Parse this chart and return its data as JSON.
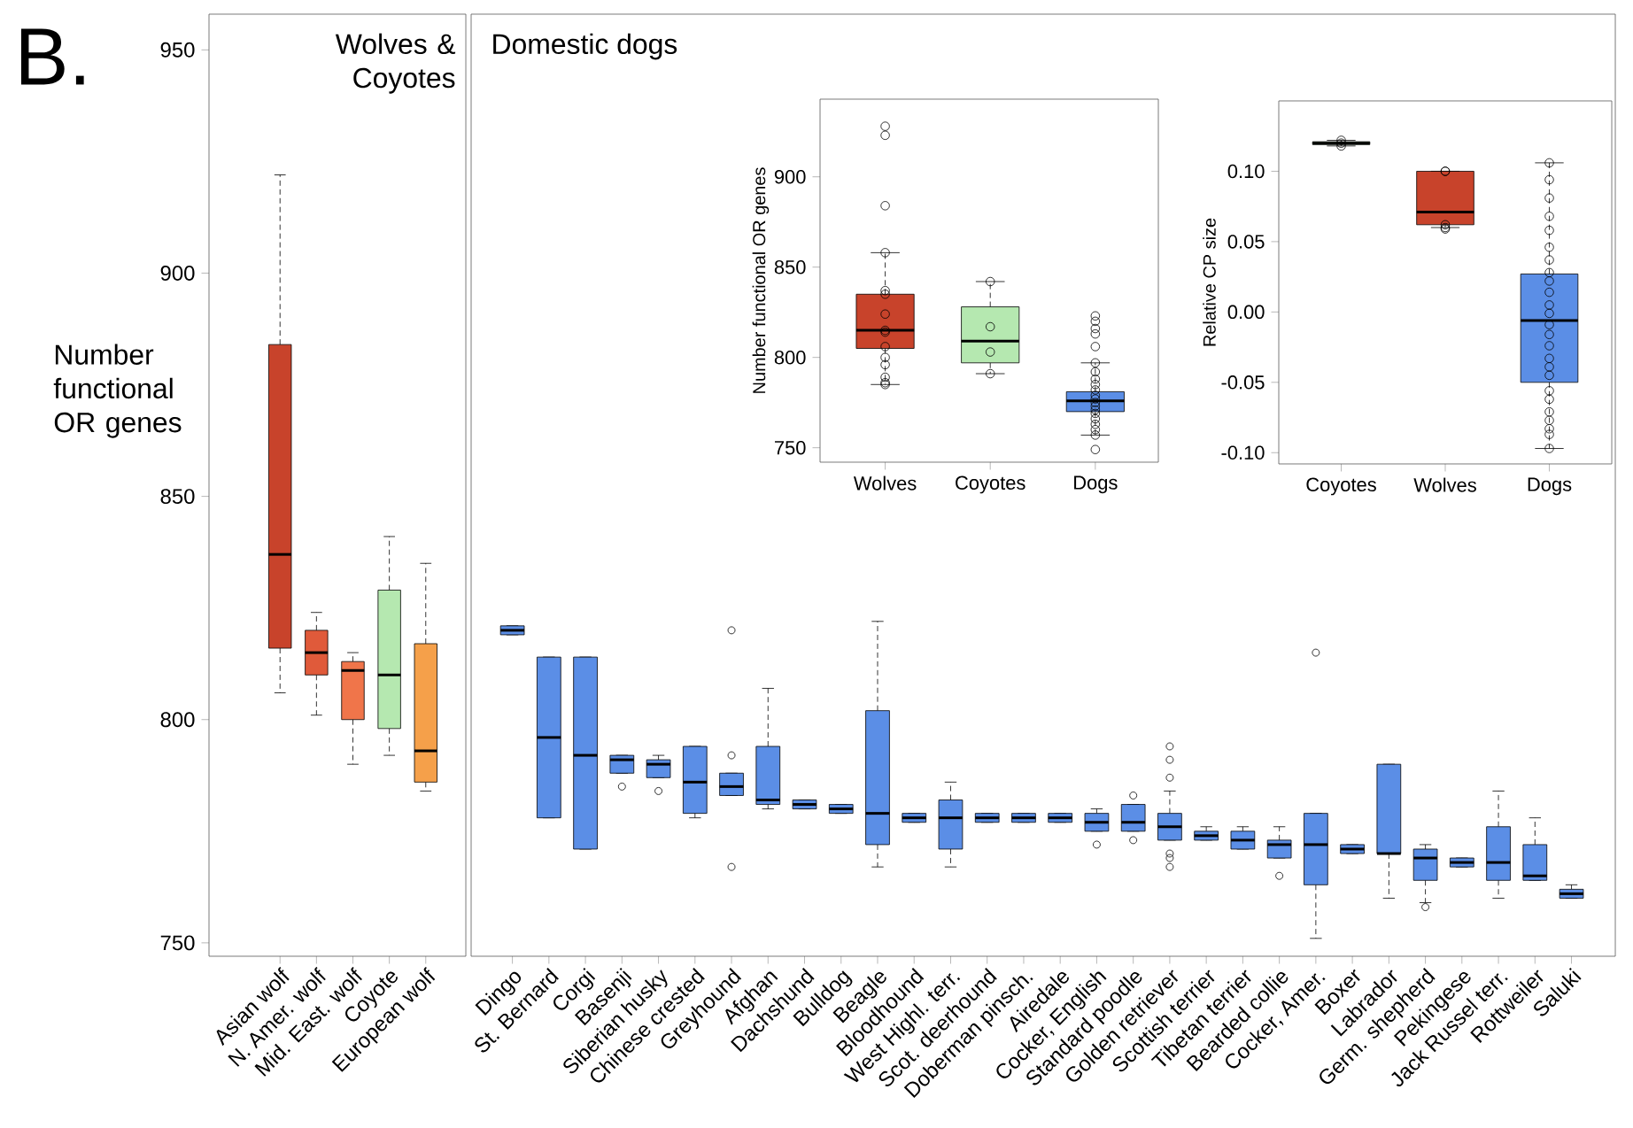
{
  "chart_data": [
    {
      "type": "box",
      "title": "Wolves & Coyotes",
      "ylabel": "Number functional OR genes",
      "annotations": [
        "B."
      ],
      "categories": [
        "Asian wolf",
        "N. Amer. wolf",
        "Mid. East. wolf",
        "Coyote",
        "European wolf"
      ],
      "colors": [
        "#c8432b",
        "#e05a3a",
        "#f0754a",
        "#b5e8b0",
        "#f5a04a"
      ],
      "boxes": [
        {
          "low": 806,
          "q1": 816,
          "median": 837,
          "q3": 884,
          "high": 922
        },
        {
          "low": 801,
          "q1": 810,
          "median": 815,
          "q3": 820,
          "high": 824
        },
        {
          "low": 790,
          "q1": 800,
          "median": 811,
          "q3": 813,
          "high": 815
        },
        {
          "low": 792,
          "q1": 798,
          "median": 810,
          "q3": 829,
          "high": 841
        },
        {
          "low": 784,
          "q1": 786,
          "median": 793,
          "q3": 817,
          "high": 835
        }
      ],
      "ylim": [
        747,
        958
      ],
      "yticks": [
        750,
        800,
        850,
        900,
        950
      ]
    },
    {
      "type": "box",
      "title": "Domestic dogs",
      "tick_labels": "x",
      "categories": [
        "Dingo",
        "St. Bernard",
        "Corgi",
        "Basenji",
        "Siberian husky",
        "Chinese crested",
        "Greyhound",
        "Afghan",
        "Dachshund",
        "Bulldog",
        "Beagle",
        "Bloodhound",
        "West Highl. terr.",
        "Scot. deerhound",
        "Doberman pinsch.",
        "Airedale",
        "Cocker, English",
        "Standard poodle",
        "Golden retriever",
        "Scottish terrier",
        "Tibetan terrier",
        "Bearded collie",
        "Cocker, Amer.",
        "Boxer",
        "Labrador",
        "Germ. shepherd",
        "Pekingese",
        "Jack Russel terr.",
        "Rottweiler",
        "Saluki"
      ],
      "color": "#5b8ee6",
      "boxes": [
        {
          "low": 819,
          "q1": 819,
          "median": 820,
          "q3": 821,
          "high": 821
        },
        {
          "low": 778,
          "q1": 778,
          "median": 796,
          "q3": 814,
          "high": 814
        },
        {
          "low": 771,
          "q1": 771,
          "median": 792,
          "q3": 814,
          "high": 814
        },
        {
          "low": 788,
          "q1": 788,
          "median": 791,
          "q3": 792,
          "high": 792,
          "outliers": [
            785
          ]
        },
        {
          "low": 787,
          "q1": 787,
          "median": 790,
          "q3": 791,
          "high": 792,
          "outliers": [
            784
          ]
        },
        {
          "low": 778,
          "q1": 779,
          "median": 786,
          "q3": 794,
          "high": 794
        },
        {
          "low": 783,
          "q1": 783,
          "median": 785,
          "q3": 788,
          "high": 788,
          "outliers": [
            820,
            792,
            767
          ]
        },
        {
          "low": 780,
          "q1": 781,
          "median": 782,
          "q3": 794,
          "high": 807
        },
        {
          "low": 780,
          "q1": 780,
          "median": 781,
          "q3": 782,
          "high": 782
        },
        {
          "low": 779,
          "q1": 779,
          "median": 780,
          "q3": 781,
          "high": 781
        },
        {
          "low": 767,
          "q1": 772,
          "median": 779,
          "q3": 802,
          "high": 822
        },
        {
          "low": 777,
          "q1": 777,
          "median": 778,
          "q3": 779,
          "high": 779
        },
        {
          "low": 767,
          "q1": 771,
          "median": 778,
          "q3": 782,
          "high": 786
        },
        {
          "low": 777,
          "q1": 777,
          "median": 778,
          "q3": 779,
          "high": 779
        },
        {
          "low": 777,
          "q1": 777,
          "median": 778,
          "q3": 779,
          "high": 779
        },
        {
          "low": 777,
          "q1": 777,
          "median": 778,
          "q3": 779,
          "high": 779
        },
        {
          "low": 775,
          "q1": 775,
          "median": 777,
          "q3": 779,
          "high": 780,
          "outliers": [
            772
          ]
        },
        {
          "low": 775,
          "q1": 775,
          "median": 777,
          "q3": 781,
          "high": 781,
          "outliers": [
            783,
            773
          ]
        },
        {
          "low": 773,
          "q1": 773,
          "median": 776,
          "q3": 779,
          "high": 784,
          "outliers": [
            794,
            791,
            787,
            770,
            769,
            767
          ]
        },
        {
          "low": 773,
          "q1": 773,
          "median": 774,
          "q3": 775,
          "high": 776
        },
        {
          "low": 771,
          "q1": 771,
          "median": 773,
          "q3": 775,
          "high": 776
        },
        {
          "low": 769,
          "q1": 769,
          "median": 772,
          "q3": 773,
          "high": 776,
          "outliers": [
            765
          ]
        },
        {
          "low": 751,
          "q1": 763,
          "median": 772,
          "q3": 779,
          "high": 779,
          "outliers": [
            815
          ]
        },
        {
          "low": 770,
          "q1": 770,
          "median": 771,
          "q3": 772,
          "high": 772
        },
        {
          "low": 760,
          "q1": 770,
          "median": 770,
          "q3": 790,
          "high": 790
        },
        {
          "low": 759,
          "q1": 764,
          "median": 769,
          "q3": 771,
          "high": 772,
          "outliers": [
            758
          ]
        },
        {
          "low": 767,
          "q1": 767,
          "median": 768,
          "q3": 769,
          "high": 769
        },
        {
          "low": 760,
          "q1": 764,
          "median": 768,
          "q3": 776,
          "high": 784
        },
        {
          "low": 764,
          "q1": 764,
          "median": 765,
          "q3": 772,
          "high": 778
        },
        {
          "low": 760,
          "q1": 760,
          "median": 761,
          "q3": 762,
          "high": 763
        }
      ],
      "ylim": [
        747,
        958
      ]
    },
    {
      "type": "box",
      "ylabel": "Number functional OR genes",
      "categories": [
        "Wolves",
        "Coyotes",
        "Dogs"
      ],
      "colors": [
        "#c8432b",
        "#b5e8b0",
        "#5b8ee6"
      ],
      "boxes": [
        {
          "low": 785,
          "q1": 805,
          "median": 815,
          "q3": 835,
          "high": 858
        },
        {
          "low": 791,
          "q1": 797,
          "median": 809,
          "q3": 828,
          "high": 842
        },
        {
          "low": 757,
          "q1": 770,
          "median": 776,
          "q3": 781,
          "high": 797
        }
      ],
      "series": [
        {
          "type": "scatter",
          "marker": "circle",
          "color": "#000000",
          "x": [
            "Wolves",
            "Wolves",
            "Wolves",
            "Wolves",
            "Wolves",
            "Wolves",
            "Wolves",
            "Wolves",
            "Wolves",
            "Wolves",
            "Wolves",
            "Wolves",
            "Wolves",
            "Wolves",
            "Wolves"
          ],
          "values": [
            928,
            923,
            884,
            858,
            837,
            835,
            824,
            815,
            814,
            806,
            800,
            796,
            789,
            786,
            785
          ]
        },
        {
          "type": "scatter",
          "marker": "circle",
          "color": "#000000",
          "x": [
            "Coyotes",
            "Coyotes",
            "Coyotes",
            "Coyotes"
          ],
          "values": [
            842,
            817,
            803,
            791
          ]
        },
        {
          "type": "scatter",
          "marker": "circle",
          "color": "#000000",
          "x": [
            "Dogs",
            "Dogs",
            "Dogs",
            "Dogs",
            "Dogs",
            "Dogs",
            "Dogs",
            "Dogs",
            "Dogs",
            "Dogs",
            "Dogs",
            "Dogs",
            "Dogs",
            "Dogs",
            "Dogs",
            "Dogs",
            "Dogs",
            "Dogs",
            "Dogs",
            "Dogs",
            "Dogs"
          ],
          "values": [
            823,
            820,
            816,
            813,
            806,
            797,
            792,
            788,
            785,
            782,
            779,
            777,
            775,
            773,
            771,
            769,
            766,
            763,
            760,
            757,
            749
          ]
        }
      ],
      "ylim": [
        742,
        943
      ],
      "yticks": [
        750,
        800,
        850,
        900
      ]
    },
    {
      "type": "box",
      "ylabel": "Relative CP size",
      "categories": [
        "Coyotes",
        "Wolves",
        "Dogs"
      ],
      "colors": [
        "#b5e8b0",
        "#c8432b",
        "#5b8ee6"
      ],
      "boxes": [
        {
          "low": 0.118,
          "q1": 0.119,
          "median": 0.12,
          "q3": 0.121,
          "high": 0.122
        },
        {
          "low": 0.06,
          "q1": 0.062,
          "median": 0.071,
          "q3": 0.1,
          "high": 0.1
        },
        {
          "low": -0.097,
          "q1": -0.05,
          "median": -0.006,
          "q3": 0.027,
          "high": 0.106
        }
      ],
      "series": [
        {
          "type": "scatter",
          "marker": "circle",
          "color": "#000000",
          "x": [
            "Coyotes",
            "Coyotes",
            "Coyotes"
          ],
          "values": [
            0.122,
            0.12,
            0.118
          ]
        },
        {
          "type": "scatter",
          "marker": "circle",
          "color": "#000000",
          "x": [
            "Wolves",
            "Wolves",
            "Wolves",
            "Wolves",
            "Wolves"
          ],
          "values": [
            0.1,
            0.1,
            0.062,
            0.06,
            0.059
          ]
        },
        {
          "type": "scatter",
          "marker": "circle",
          "color": "#000000",
          "x": [
            "Dogs",
            "Dogs",
            "Dogs",
            "Dogs",
            "Dogs",
            "Dogs",
            "Dogs",
            "Dogs",
            "Dogs",
            "Dogs",
            "Dogs",
            "Dogs",
            "Dogs",
            "Dogs",
            "Dogs",
            "Dogs",
            "Dogs",
            "Dogs",
            "Dogs",
            "Dogs",
            "Dogs",
            "Dogs",
            "Dogs",
            "Dogs",
            "Dogs"
          ],
          "values": [
            0.106,
            0.094,
            0.081,
            0.068,
            0.058,
            0.046,
            0.037,
            0.028,
            0.022,
            0.014,
            0.005,
            -0.001,
            -0.009,
            -0.016,
            -0.024,
            -0.033,
            -0.039,
            -0.045,
            -0.056,
            -0.062,
            -0.071,
            -0.077,
            -0.083,
            -0.087,
            -0.097
          ]
        }
      ],
      "ylim": [
        -0.108,
        0.15
      ],
      "yticks": [
        {
          "value": -0.1,
          "label": "-0.10"
        },
        {
          "value": -0.05,
          "label": "-0.05"
        },
        {
          "value": 0,
          "label": "0.00"
        },
        {
          "value": 0.05,
          "label": "0.05"
        },
        {
          "value": 0.1,
          "label": "0.10"
        }
      ]
    }
  ]
}
